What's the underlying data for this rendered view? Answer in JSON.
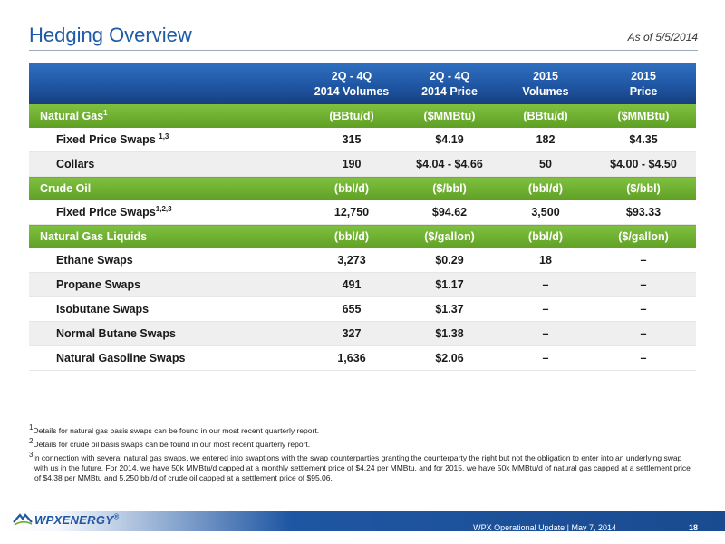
{
  "header": {
    "title": "Hedging Overview",
    "as_of": "As of 5/5/2014"
  },
  "table": {
    "columns": [
      {
        "line1": "2Q - 4Q",
        "line2": "2014 Volumes"
      },
      {
        "line1": "2Q - 4Q",
        "line2": "2014 Price"
      },
      {
        "line1": "2015",
        "line2": "Volumes"
      },
      {
        "line1": "2015",
        "line2": "Price"
      }
    ],
    "natural_gas": {
      "label": "Natural Gas",
      "sup": "1",
      "units": [
        "(BBtu/d)",
        "($MMBtu)",
        "(BBtu/d)",
        "($MMBtu)"
      ],
      "rows": [
        {
          "label": "Fixed Price Swaps ",
          "sup": "1,3",
          "values": [
            "315",
            "$4.19",
            "182",
            "$4.35"
          ]
        },
        {
          "label": "Collars",
          "sup": "",
          "values": [
            "190",
            "$4.04 - $4.66",
            "50",
            "$4.00 - $4.50"
          ]
        }
      ]
    },
    "crude_oil": {
      "label": "Crude Oil",
      "units": [
        "(bbl/d)",
        "($/bbl)",
        "(bbl/d)",
        "($/bbl)"
      ],
      "rows": [
        {
          "label": "Fixed Price Swaps",
          "sup": "1,2,3",
          "values": [
            "12,750",
            "$94.62",
            "3,500",
            "$93.33"
          ]
        }
      ]
    },
    "ngl": {
      "label": "Natural Gas Liquids",
      "units": [
        "(bbl/d)",
        "($/gallon)",
        "(bbl/d)",
        "($/gallon)"
      ],
      "rows": [
        {
          "label": "Ethane Swaps",
          "values": [
            "3,273",
            "$0.29",
            "18",
            "–"
          ]
        },
        {
          "label": "Propane Swaps",
          "values": [
            "491",
            "$1.17",
            "–",
            "–"
          ]
        },
        {
          "label": "Isobutane Swaps",
          "values": [
            "655",
            "$1.37",
            "–",
            "–"
          ]
        },
        {
          "label": "Normal Butane Swaps",
          "values": [
            "327",
            "$1.38",
            "–",
            "–"
          ]
        },
        {
          "label": "Natural Gasoline Swaps",
          "values": [
            "1,636",
            "$2.06",
            "–",
            "–"
          ]
        }
      ]
    }
  },
  "footnotes": [
    {
      "num": "1",
      "text": "Details for natural gas basis swaps can be found in our most recent quarterly report."
    },
    {
      "num": "2",
      "text": "Details for crude oil basis swaps can be found in our most recent quarterly report."
    },
    {
      "num": "3",
      "text": "In connection with several natural gas swaps, we entered into swaptions with the swap counterparties granting the counterparty the right but not the obligation to enter into an underlying swap with us in the future. For 2014, we have 50k MMBtu/d capped at a monthly settlement price of $4.24 per MMBtu, and for 2015, we have 50k MMBtu/d of natural gas capped at a settlement price of $4.38 per MMBtu and 5,250 bbl/d of crude oil capped at a settlement price of $95.06."
    }
  ],
  "footer": {
    "logo_text": "WPXENERGY",
    "logo_mark": "®",
    "text": "WPX Operational Update  |  May 7, 2014",
    "page": "18"
  },
  "colors": {
    "title_blue": "#1f5aa6",
    "header_blue": "#1f56a3",
    "section_green": "#6aab2c",
    "alt_row_gray": "#efefef"
  }
}
